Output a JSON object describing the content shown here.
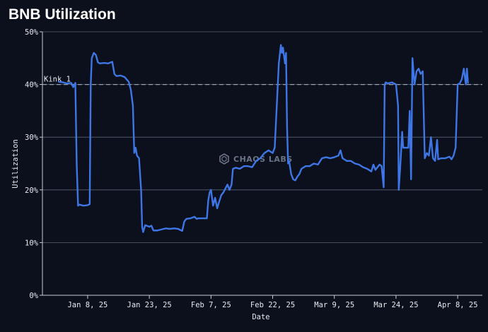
{
  "title": "BNB Utilization",
  "watermark": "CHAOS LABS",
  "chart_data": {
    "type": "line",
    "title": "BNB Utilization",
    "xlabel": "Date",
    "ylabel": "Utilization",
    "x_type": "date",
    "xlim": [
      "2024-12-28",
      "2025-04-14"
    ],
    "ylim": [
      0,
      50
    ],
    "y_ticks": [
      0,
      10,
      20,
      30,
      40,
      50
    ],
    "y_tick_labels": [
      "0%",
      "10%",
      "20%",
      "30%",
      "40%",
      "50%"
    ],
    "x_ticks": [
      "2025-01-08",
      "2025-01-23",
      "2025-02-07",
      "2025-02-22",
      "2025-03-09",
      "2025-03-24",
      "2025-04-08"
    ],
    "x_tick_labels": [
      "Jan 8, 25",
      "Jan 23, 25",
      "Feb 7, 25",
      "Feb 22, 25",
      "Mar 9, 25",
      "Mar 24, 25",
      "Apr 8, 25"
    ],
    "grid": "horizontal",
    "reference_lines": [
      {
        "name": "Kink 1",
        "y": 40,
        "style": "dashed",
        "color": "#9aa3b2"
      }
    ],
    "series": [
      {
        "color": "#3f76e6",
        "points": [
          [
            "2025-01-01",
            40.5
          ],
          [
            "2025-01-02",
            40.4
          ],
          [
            "2025-01-03",
            40.2
          ],
          [
            "2025-01-04",
            40.3
          ],
          [
            "2025-01-04 12:00",
            39.5
          ],
          [
            "2025-01-05",
            40.3
          ],
          [
            "2025-01-05 08:00",
            25.0
          ],
          [
            "2025-01-05 16:00",
            17.0
          ],
          [
            "2025-01-06",
            17.2
          ],
          [
            "2025-01-07",
            17.0
          ],
          [
            "2025-01-08",
            17.1
          ],
          [
            "2025-01-08 12:00",
            17.3
          ],
          [
            "2025-01-08 18:00",
            40.0
          ],
          [
            "2025-01-09",
            45.0
          ],
          [
            "2025-01-09 12:00",
            46.0
          ],
          [
            "2025-01-10",
            45.6
          ],
          [
            "2025-01-10 12:00",
            44.2
          ],
          [
            "2025-01-11",
            44.0
          ],
          [
            "2025-01-12",
            44.1
          ],
          [
            "2025-01-13",
            44.0
          ],
          [
            "2025-01-14",
            44.3
          ],
          [
            "2025-01-14 12:00",
            42.0
          ],
          [
            "2025-01-15",
            41.6
          ],
          [
            "2025-01-16",
            41.7
          ],
          [
            "2025-01-17",
            41.4
          ],
          [
            "2025-01-18",
            40.5
          ],
          [
            "2025-01-18 12:00",
            39.0
          ],
          [
            "2025-01-19",
            36.0
          ],
          [
            "2025-01-19 08:00",
            27.0
          ],
          [
            "2025-01-19 16:00",
            28.0
          ],
          [
            "2025-01-20",
            26.5
          ],
          [
            "2025-01-20 12:00",
            26.0
          ],
          [
            "2025-01-21",
            20.0
          ],
          [
            "2025-01-21 06:00",
            13.0
          ],
          [
            "2025-01-21 12:00",
            12.0
          ],
          [
            "2025-01-22",
            13.3
          ],
          [
            "2025-01-23",
            13.0
          ],
          [
            "2025-01-23 12:00",
            13.2
          ],
          [
            "2025-01-24",
            12.3
          ],
          [
            "2025-01-25",
            12.3
          ],
          [
            "2025-01-26",
            12.5
          ],
          [
            "2025-01-27",
            12.7
          ],
          [
            "2025-01-28",
            12.6
          ],
          [
            "2025-01-29",
            12.7
          ],
          [
            "2025-01-30",
            12.6
          ],
          [
            "2025-01-31",
            12.2
          ],
          [
            "2025-01-31 12:00",
            14.0
          ],
          [
            "2025-02-01",
            14.5
          ],
          [
            "2025-02-02",
            14.6
          ],
          [
            "2025-02-03",
            14.9
          ],
          [
            "2025-02-03 12:00",
            14.5
          ],
          [
            "2025-02-04",
            14.6
          ],
          [
            "2025-02-05",
            14.6
          ],
          [
            "2025-02-06",
            14.6
          ],
          [
            "2025-02-06 08:00",
            18.0
          ],
          [
            "2025-02-06 16:00",
            19.5
          ],
          [
            "2025-02-07",
            20.0
          ],
          [
            "2025-02-07 12:00",
            17.0
          ],
          [
            "2025-02-08",
            18.5
          ],
          [
            "2025-02-08 12:00",
            16.5
          ],
          [
            "2025-02-09",
            17.8
          ],
          [
            "2025-02-09 12:00",
            19.0
          ],
          [
            "2025-02-10",
            19.5
          ],
          [
            "2025-02-11",
            21.0
          ],
          [
            "2025-02-11 12:00",
            20.0
          ],
          [
            "2025-02-12",
            21.0
          ],
          [
            "2025-02-12 08:00",
            24.0
          ],
          [
            "2025-02-13",
            24.2
          ],
          [
            "2025-02-14",
            24.0
          ],
          [
            "2025-02-15",
            24.5
          ],
          [
            "2025-02-16",
            24.5
          ],
          [
            "2025-02-17",
            24.3
          ],
          [
            "2025-02-18",
            25.5
          ],
          [
            "2025-02-19",
            26.0
          ],
          [
            "2025-02-20",
            27.0
          ],
          [
            "2025-02-21",
            27.5
          ],
          [
            "2025-02-22",
            27.0
          ],
          [
            "2025-02-22 12:00",
            28.0
          ],
          [
            "2025-02-23",
            36.0
          ],
          [
            "2025-02-23 12:00",
            44.0
          ],
          [
            "2025-02-24",
            47.5
          ],
          [
            "2025-02-24 06:00",
            46.0
          ],
          [
            "2025-02-24 12:00",
            47.0
          ],
          [
            "2025-02-25",
            44.0
          ],
          [
            "2025-02-25 06:00",
            46.0
          ],
          [
            "2025-02-25 12:00",
            32.0
          ],
          [
            "2025-02-25 18:00",
            25.0
          ],
          [
            "2025-02-26",
            25.5
          ],
          [
            "2025-02-26 12:00",
            23.0
          ],
          [
            "2025-02-27",
            22.0
          ],
          [
            "2025-02-27 12:00",
            21.8
          ],
          [
            "2025-02-28",
            22.5
          ],
          [
            "2025-02-28 12:00",
            23.0
          ],
          [
            "2025-03-01",
            24.0
          ],
          [
            "2025-03-02",
            24.5
          ],
          [
            "2025-03-03",
            24.5
          ],
          [
            "2025-03-04",
            25.0
          ],
          [
            "2025-03-05",
            24.8
          ],
          [
            "2025-03-06",
            26.0
          ],
          [
            "2025-03-07",
            26.2
          ],
          [
            "2025-03-08",
            26.0
          ],
          [
            "2025-03-09",
            26.2
          ],
          [
            "2025-03-10",
            26.5
          ],
          [
            "2025-03-10 12:00",
            27.5
          ],
          [
            "2025-03-11",
            26.0
          ],
          [
            "2025-03-12",
            25.5
          ],
          [
            "2025-03-13",
            25.5
          ],
          [
            "2025-03-14",
            25.0
          ],
          [
            "2025-03-15",
            24.8
          ],
          [
            "2025-03-16",
            24.3
          ],
          [
            "2025-03-17",
            24.0
          ],
          [
            "2025-03-18",
            23.5
          ],
          [
            "2025-03-18 12:00",
            24.8
          ],
          [
            "2025-03-19",
            23.8
          ],
          [
            "2025-03-20",
            24.8
          ],
          [
            "2025-03-20 12:00",
            24.5
          ],
          [
            "2025-03-21",
            20.5
          ],
          [
            "2025-03-21 06:00",
            40.0
          ],
          [
            "2025-03-21 12:00",
            40.4
          ],
          [
            "2025-03-22",
            40.2
          ],
          [
            "2025-03-23",
            40.4
          ],
          [
            "2025-03-24",
            40.0
          ],
          [
            "2025-03-24 12:00",
            36.0
          ],
          [
            "2025-03-24 16:00",
            20.0
          ],
          [
            "2025-03-25",
            24.0
          ],
          [
            "2025-03-25 12:00",
            31.0
          ],
          [
            "2025-03-25 18:00",
            28.0
          ],
          [
            "2025-03-26",
            28.0
          ],
          [
            "2025-03-27",
            28.0
          ],
          [
            "2025-03-27 08:00",
            35.0
          ],
          [
            "2025-03-27 16:00",
            22.0
          ],
          [
            "2025-03-28",
            45.0
          ],
          [
            "2025-03-28 12:00",
            40.0
          ],
          [
            "2025-03-29",
            42.5
          ],
          [
            "2025-03-29 12:00",
            43.0
          ],
          [
            "2025-03-30",
            42.0
          ],
          [
            "2025-03-30 12:00",
            42.5
          ],
          [
            "2025-03-31",
            26.0
          ],
          [
            "2025-03-31 12:00",
            27.0
          ],
          [
            "2025-04-01",
            26.5
          ],
          [
            "2025-04-01 12:00",
            30.0
          ],
          [
            "2025-04-02",
            26.0
          ],
          [
            "2025-04-02 12:00",
            25.5
          ],
          [
            "2025-04-03",
            29.5
          ],
          [
            "2025-04-03 06:00",
            25.8
          ],
          [
            "2025-04-04",
            26.0
          ],
          [
            "2025-04-05",
            26.0
          ],
          [
            "2025-04-06",
            26.3
          ],
          [
            "2025-04-06 12:00",
            25.8
          ],
          [
            "2025-04-07",
            26.5
          ],
          [
            "2025-04-07 12:00",
            28.0
          ],
          [
            "2025-04-08",
            40.0
          ],
          [
            "2025-04-08 12:00",
            40.2
          ],
          [
            "2025-04-09",
            41.0
          ],
          [
            "2025-04-09 12:00",
            43.0
          ],
          [
            "2025-04-10",
            40.0
          ],
          [
            "2025-04-10 06:00",
            43.0
          ],
          [
            "2025-04-10 12:00",
            40.3
          ]
        ]
      }
    ]
  }
}
